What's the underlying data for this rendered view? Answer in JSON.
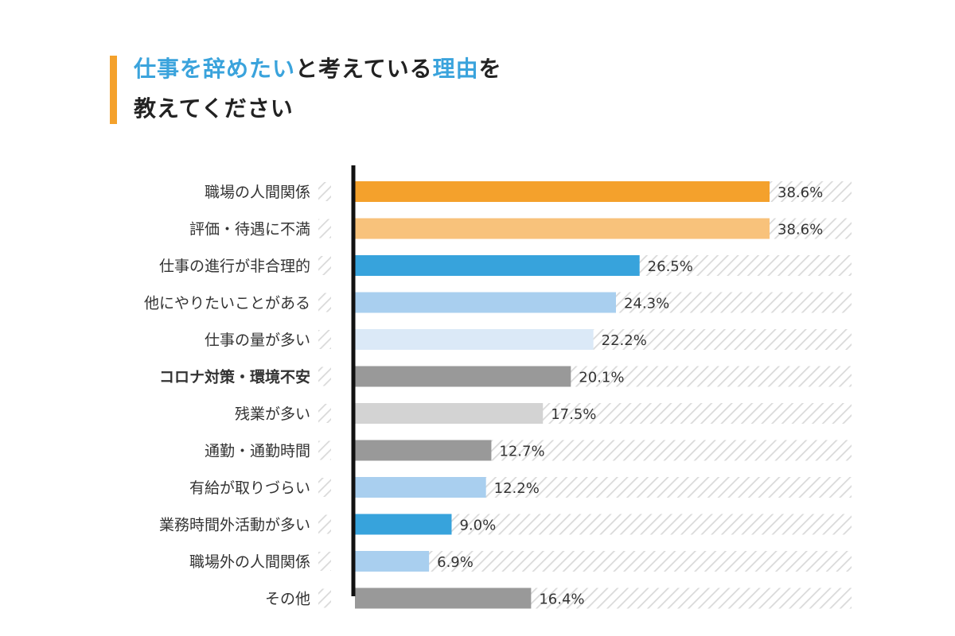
{
  "title": {
    "line1_parts": [
      {
        "text": "仕事を辞めたい",
        "highlight": true
      },
      {
        "text": "と考えている",
        "highlight": false
      },
      {
        "text": "理由",
        "highlight": true
      },
      {
        "text": "を",
        "highlight": false
      }
    ],
    "line2": "教えてください"
  },
  "colors": {
    "title_accent": "#f4a12c",
    "title_highlight": "#3aa3dc",
    "highlight_label": "#f4a12c",
    "axis": "#111111",
    "hatch": "#d9d9d9"
  },
  "chart_data": {
    "type": "bar",
    "orientation": "horizontal",
    "xlim": [
      0,
      45
    ],
    "unit": "%",
    "categories": [
      "職場の人間関係",
      "評価・待遇に不満",
      "仕事の進行が非合理的",
      "他にやりたいことがある",
      "仕事の量が多い",
      "コロナ対策・環境不安",
      "残業が多い",
      "通勤・通勤時間",
      "有給が取りづらい",
      "業務時間外活動が多い",
      "職場外の人間関係",
      "その他"
    ],
    "values": [
      38.6,
      38.6,
      26.5,
      24.3,
      22.2,
      20.1,
      17.5,
      12.7,
      12.2,
      9.0,
      6.9,
      16.4
    ],
    "value_labels": [
      "38.6%",
      "38.6%",
      "26.5%",
      "24.3%",
      "22.2%",
      "20.1%",
      "17.5%",
      "12.7%",
      "12.2%",
      "9.0%",
      "6.9%",
      "16.4%"
    ],
    "bar_colors": [
      "#f4a12c",
      "#f8c27b",
      "#37a3dc",
      "#a9cfef",
      "#dbe9f7",
      "#999999",
      "#d3d3d3",
      "#999999",
      "#a9cfef",
      "#37a3dc",
      "#a9cfef",
      "#999999"
    ],
    "highlighted_category_index": 5
  }
}
